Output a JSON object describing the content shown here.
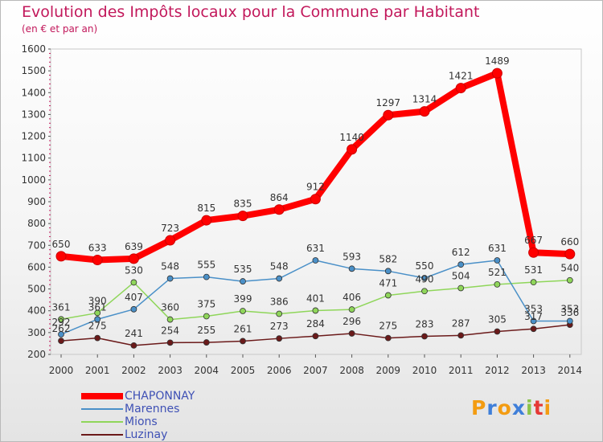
{
  "title": "Evolution des Impôts locaux pour la Commune par Habitant",
  "subtitle": "(en € et par an)",
  "logo": {
    "letters": [
      "P",
      "r",
      "o",
      "x",
      "i",
      "t",
      "i"
    ],
    "colors": [
      "#f39c12",
      "#3f7fd9",
      "#f39c12",
      "#3f7fd9",
      "#8bc34a",
      "#e53935",
      "#f39c12"
    ]
  },
  "chart_data": {
    "type": "line",
    "x": [
      2000,
      2001,
      2002,
      2003,
      2004,
      2005,
      2006,
      2007,
      2008,
      2009,
      2010,
      2011,
      2012,
      2013,
      2014
    ],
    "ylim": [
      200,
      1600
    ],
    "yticks": [
      200,
      300,
      400,
      500,
      600,
      700,
      800,
      900,
      1000,
      1100,
      1200,
      1300,
      1400,
      1500,
      1600
    ],
    "grid": false,
    "legend_position": "bottom-left",
    "series": [
      {
        "name": "CHAPONNAY",
        "color": "#ff0000",
        "values": [
          650,
          633,
          639,
          723,
          815,
          835,
          864,
          912,
          1140,
          1297,
          1314,
          1421,
          1489,
          667,
          660
        ]
      },
      {
        "name": "Marennes",
        "color": "#4a90c8",
        "values": [
          292,
          361,
          407,
          548,
          555,
          535,
          548,
          631,
          593,
          582,
          550,
          612,
          631,
          353,
          353
        ]
      },
      {
        "name": "Mions",
        "color": "#8fd65a",
        "values": [
          361,
          390,
          530,
          360,
          375,
          399,
          386,
          401,
          406,
          471,
          490,
          504,
          521,
          531,
          540
        ]
      },
      {
        "name": "Luzinay",
        "color": "#6b1a1a",
        "values": [
          262,
          275,
          241,
          254,
          255,
          261,
          273,
          284,
          296,
          275,
          283,
          287,
          305,
          317,
          336
        ]
      }
    ]
  }
}
